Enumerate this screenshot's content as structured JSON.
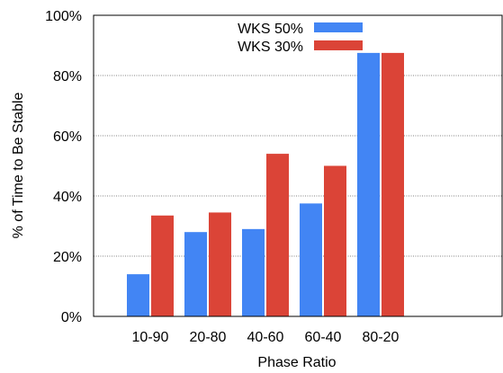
{
  "chart_data": {
    "type": "bar",
    "title": "",
    "xlabel": "Phase Ratio",
    "ylabel": "% of Time to Be Stable",
    "categories": [
      "10-90",
      "20-80",
      "40-60",
      "60-40",
      "80-20"
    ],
    "series": [
      {
        "name": "WKS 50%",
        "color": "#4285f4",
        "values": [
          14,
          28,
          29,
          37.5,
          87.5
        ]
      },
      {
        "name": "WKS 30%",
        "color": "#db4437",
        "values": [
          33.5,
          34.5,
          54,
          50,
          87.5
        ]
      }
    ],
    "ylim": [
      0,
      100
    ],
    "yticks": [
      0,
      20,
      40,
      60,
      80,
      100
    ],
    "ytick_labels": [
      "0%",
      "20%",
      "40%",
      "60%",
      "80%",
      "100%"
    ],
    "grid": true,
    "legend_position": "top-center"
  }
}
